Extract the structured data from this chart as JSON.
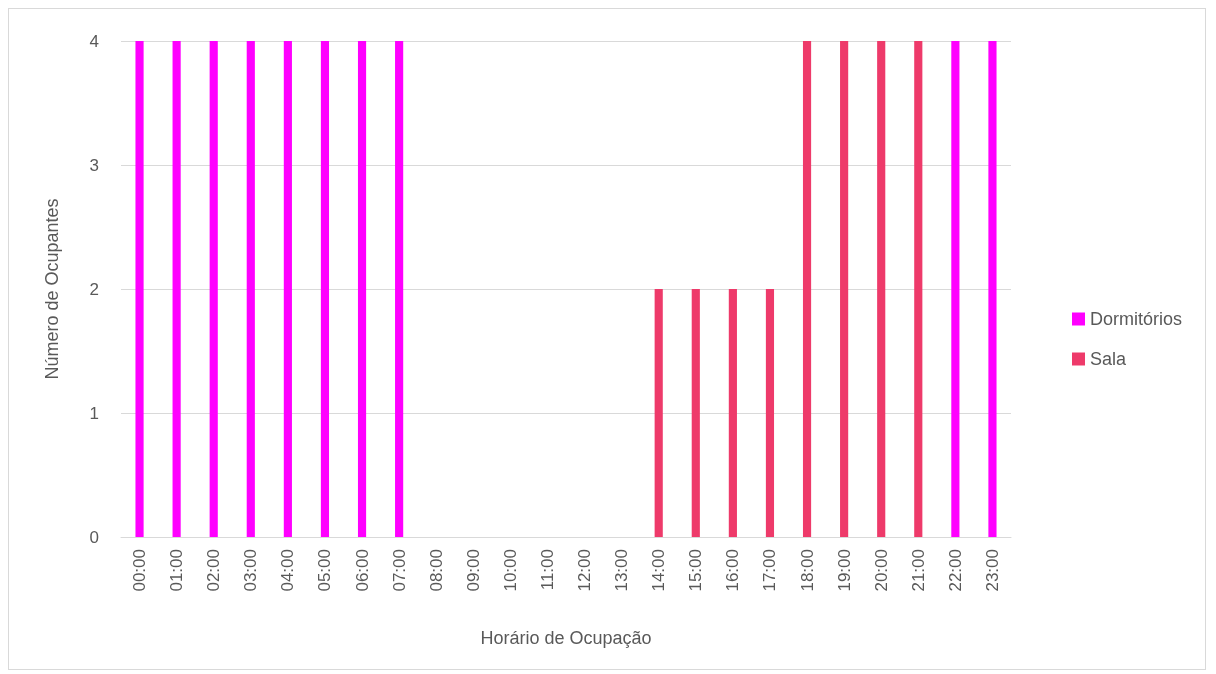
{
  "chart_data": {
    "type": "bar",
    "stacked": true,
    "xlabel": "Horário de Ocupação",
    "ylabel": "Número de Ocupantes",
    "categories": [
      "00:00",
      "01:00",
      "02:00",
      "03:00",
      "04:00",
      "05:00",
      "06:00",
      "07:00",
      "08:00",
      "09:00",
      "10:00",
      "11:00",
      "12:00",
      "13:00",
      "14:00",
      "15:00",
      "16:00",
      "17:00",
      "18:00",
      "19:00",
      "20:00",
      "21:00",
      "22:00",
      "23:00"
    ],
    "series": [
      {
        "name": "Dormitórios",
        "color": "#ff00ff",
        "values": [
          4,
          4,
          4,
          4,
          4,
          4,
          4,
          4,
          0,
          0,
          0,
          0,
          0,
          0,
          0,
          0,
          0,
          0,
          0,
          0,
          0,
          0,
          4,
          4
        ]
      },
      {
        "name": "Sala",
        "color": "#ee3a6a",
        "values": [
          0,
          0,
          0,
          0,
          0,
          0,
          0,
          0,
          0,
          0,
          0,
          0,
          0,
          0,
          2,
          2,
          2,
          2,
          4,
          4,
          4,
          4,
          0,
          0
        ]
      }
    ],
    "ylim": [
      0,
      4
    ],
    "yticks": [
      0,
      1,
      2,
      3,
      4
    ],
    "grid": "y",
    "legend": "right"
  }
}
